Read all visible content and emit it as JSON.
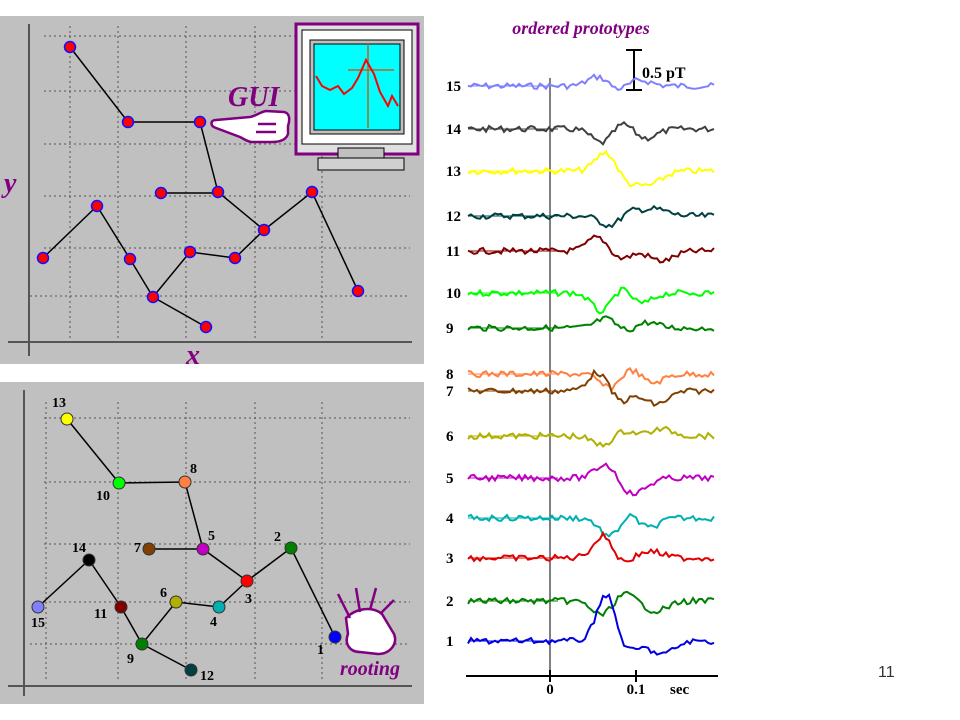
{
  "top_panel": {
    "y_axis_label": "y",
    "x_axis_label": "x",
    "gui_label": "GUI"
  },
  "bottom_panel": {
    "rooting_label": "rooting",
    "node_labels": [
      "13",
      "10",
      "8",
      "7",
      "5",
      "14",
      "2",
      "6",
      "15",
      "11",
      "4",
      "3",
      "1",
      "9",
      "12"
    ]
  },
  "right_panel": {
    "title": "ordered prototypes",
    "scale_label": "0.5 pT",
    "trace_labels": [
      "15",
      "14",
      "13",
      "12",
      "11",
      "10",
      "9",
      "8",
      "7",
      "6",
      "5",
      "4",
      "3",
      "2",
      "1"
    ],
    "x_ticks": [
      "0",
      "0.1"
    ],
    "x_unit": "sec",
    "trace_colors": [
      "#8080ff",
      "#404040",
      "#ffff00",
      "#004040",
      "#800000",
      "#00ff00",
      "#008000",
      "#ff8040",
      "#804000",
      "#b0b000",
      "#c000c0",
      "#00b0b0",
      "#e00000",
      "#008000",
      "#0000e0"
    ]
  },
  "slide_number": "11"
}
